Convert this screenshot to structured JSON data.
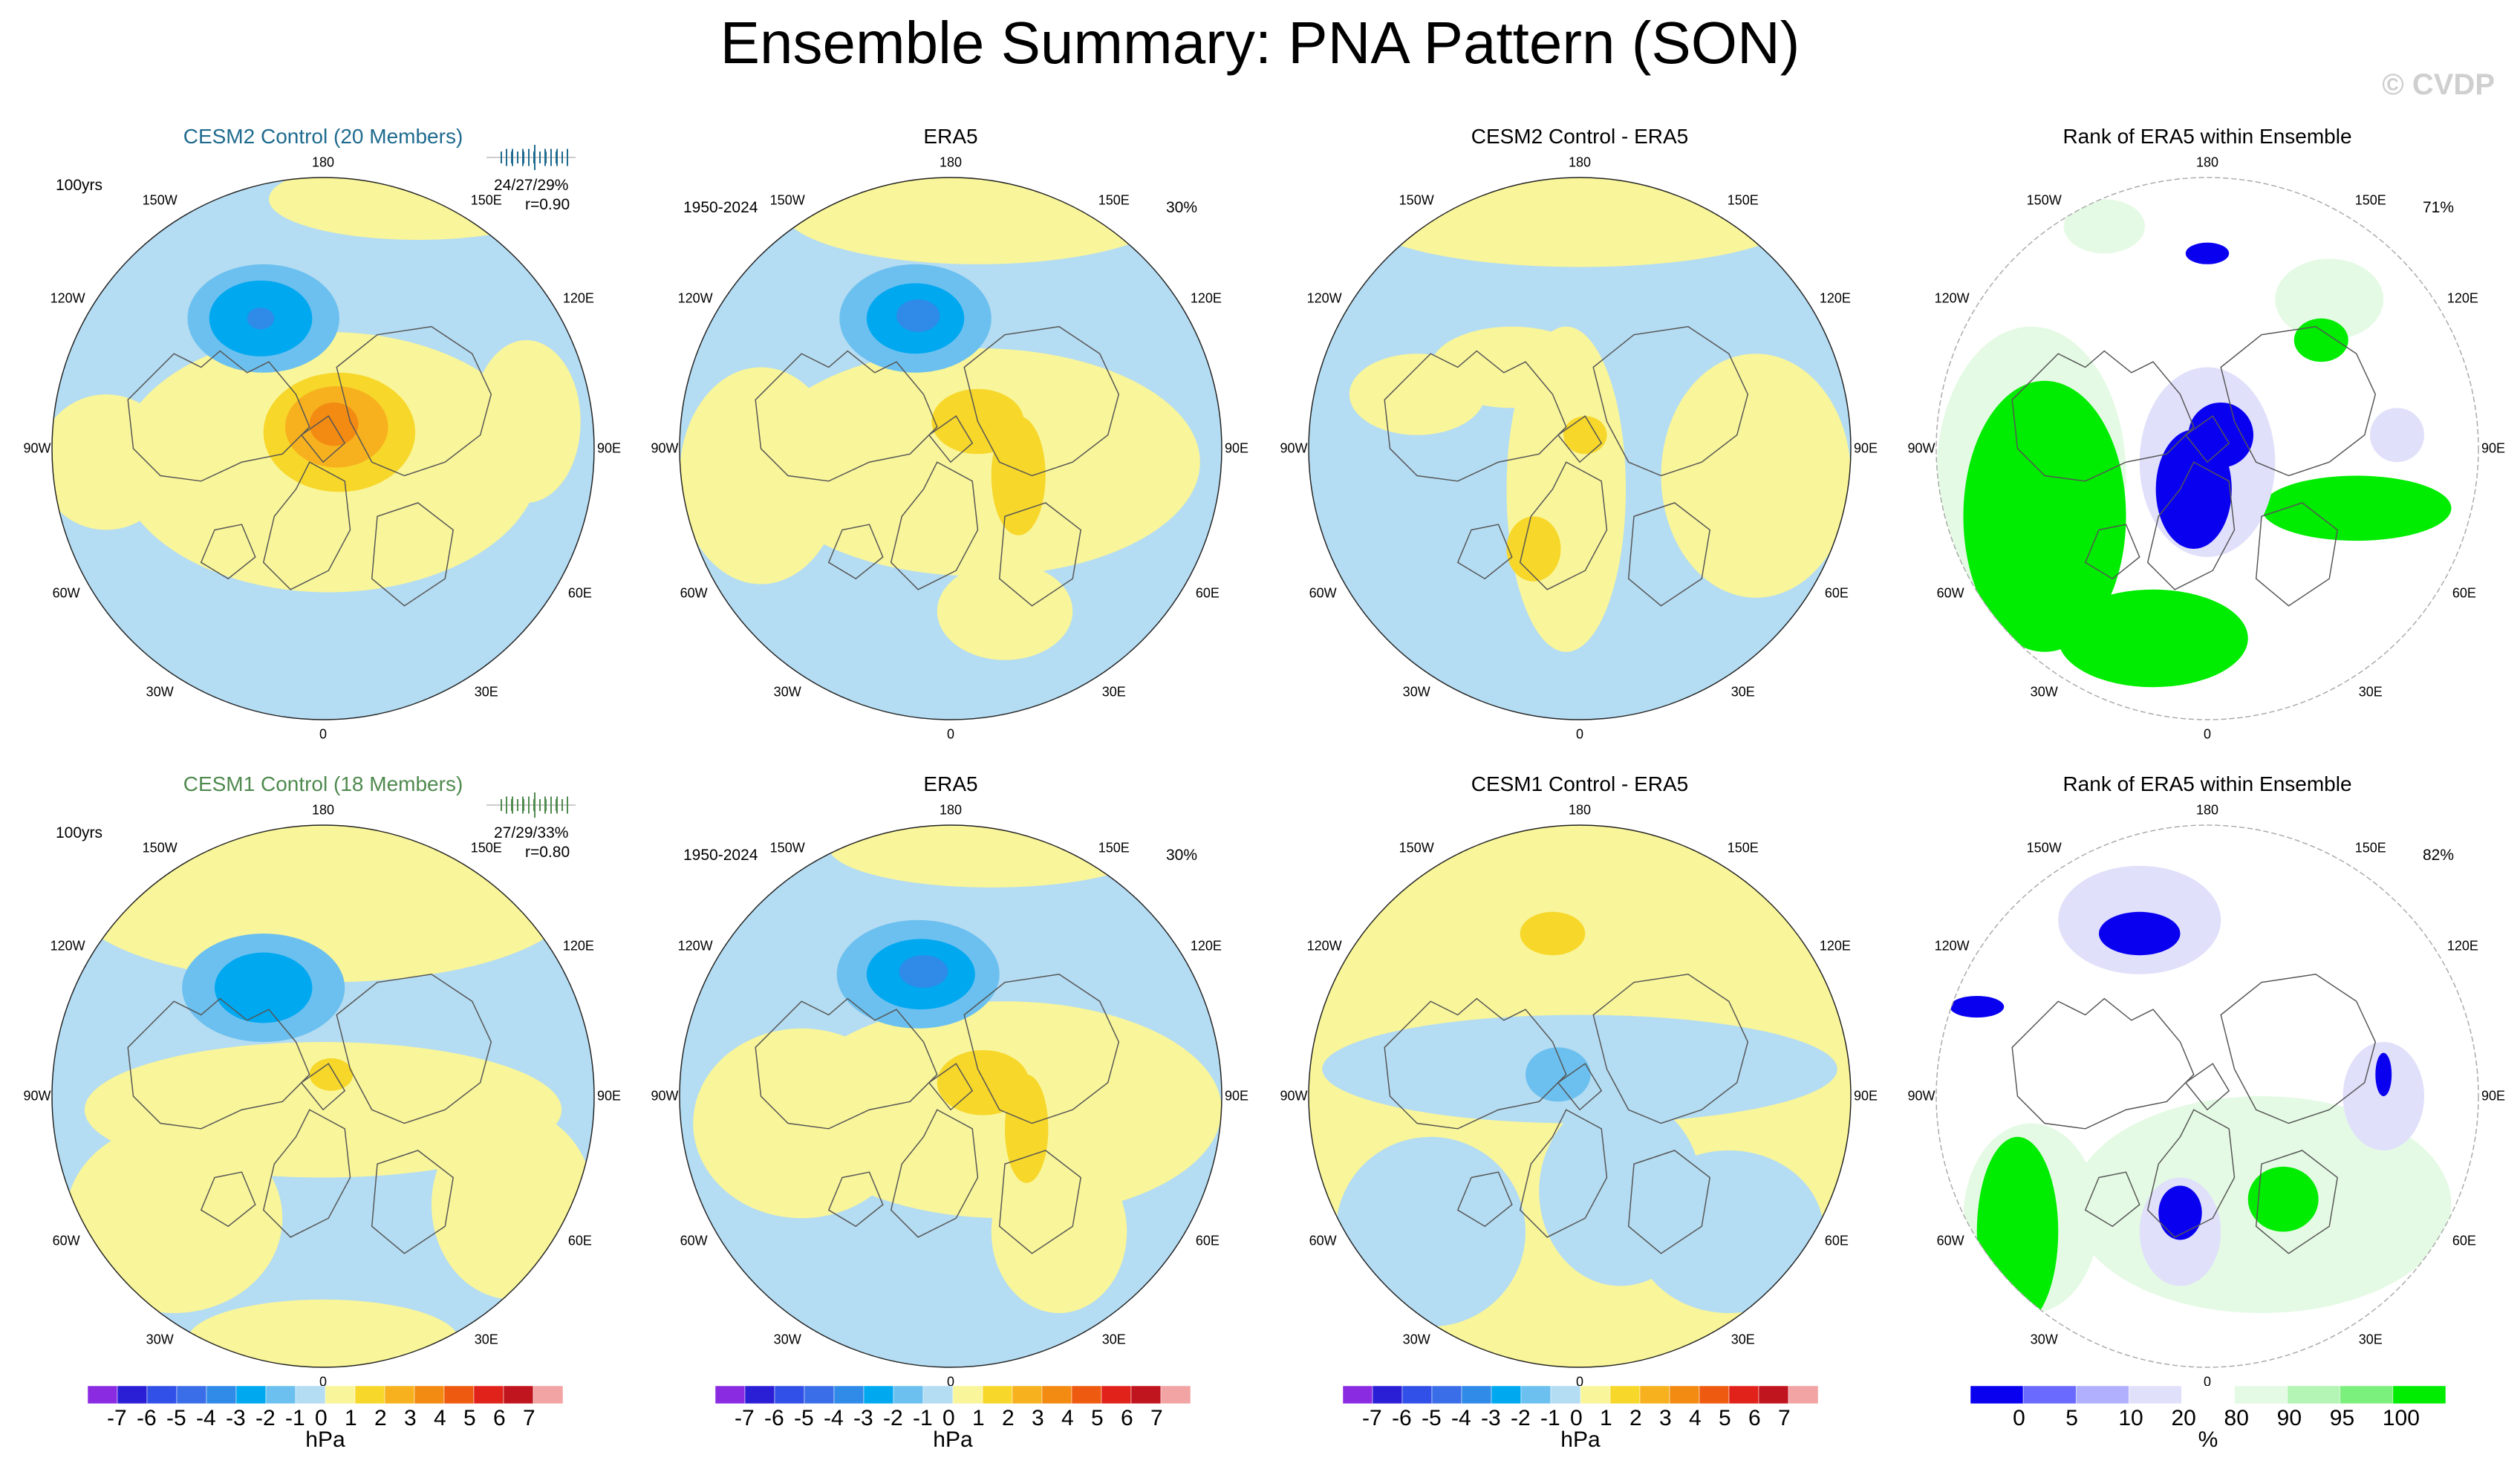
{
  "title": "Ensemble Summary: PNA Pattern (SON)",
  "watermark": "© CVDP",
  "rows": [
    {
      "model_title": "CESM2 Control (20 Members)",
      "model_title_color": "#1f6b8f",
      "model_years": "100yrs",
      "model_stats": "24/27/29%",
      "model_corr": "r=0.90",
      "obs_title": "ERA5",
      "obs_years": "1950-2024",
      "obs_pct": "30%",
      "diff_title": "CESM2 Control - ERA5",
      "rank_title": "Rank of ERA5 within Ensemble",
      "rank_pct": "71%"
    },
    {
      "model_title": "CESM1 Control (18 Members)",
      "model_title_color": "#4f8a4f",
      "model_years": "100yrs",
      "model_stats": "27/29/33%",
      "model_corr": "r=0.80",
      "obs_title": "ERA5",
      "obs_years": "1950-2024",
      "obs_pct": "30%",
      "diff_title": "CESM1 Control - ERA5",
      "rank_title": "Rank of ERA5 within Ensemble",
      "rank_pct": "82%"
    }
  ],
  "longitudes": {
    "top": "180",
    "bottom": "0",
    "left": "90W",
    "right": "90E",
    "upper_left_1": "150W",
    "upper_left_2": "120W",
    "lower_left_1": "60W",
    "lower_left_2": "30W",
    "upper_right_1": "150E",
    "upper_right_2": "120E",
    "lower_right_1": "60E",
    "lower_right_2": "30E"
  },
  "colorbar": {
    "labels": [
      "-7",
      "-6",
      "-5",
      "-4",
      "-3",
      "-2",
      "-1",
      "0",
      "1",
      "2",
      "3",
      "4",
      "5",
      "6",
      "7"
    ],
    "unit": "hPa",
    "colors": [
      "#8a2be2",
      "#2b1fd6",
      "#3050e8",
      "#3a6ee8",
      "#2f8ae8",
      "#00a8f0",
      "#6cc0ef",
      "#b4dcf2",
      "#f9f59a",
      "#f7d72a",
      "#f7b11f",
      "#f38a12",
      "#ee5a10",
      "#e0221a",
      "#c0141e",
      "#f2a3a3"
    ]
  },
  "rank_colorbar": {
    "labels": [
      "0",
      "5",
      "10",
      "20",
      "80",
      "90",
      "95",
      "100"
    ],
    "unit": "%",
    "colors": [
      "#0a00f0",
      "#6a6aff",
      "#b0b0ff",
      "#e0e0fb",
      "#ffffff",
      "#e4fae4",
      "#b4f4b4",
      "#7cf07c",
      "#00ec00"
    ]
  },
  "map_colors": {
    "neg1": "#b4dcf2",
    "neg2": "#6cc0ef",
    "neg3": "#00a8f0",
    "neg4": "#2f8ae8",
    "pos1": "#f9f59a",
    "pos2": "#f7d72a",
    "pos3": "#f7b11f",
    "pos4": "#f38a12",
    "rank_low": "#0a00f0",
    "rank_lowlight": "#e0e0fb",
    "rank_high": "#00ec00",
    "rank_highlight": "#e4fae4"
  }
}
